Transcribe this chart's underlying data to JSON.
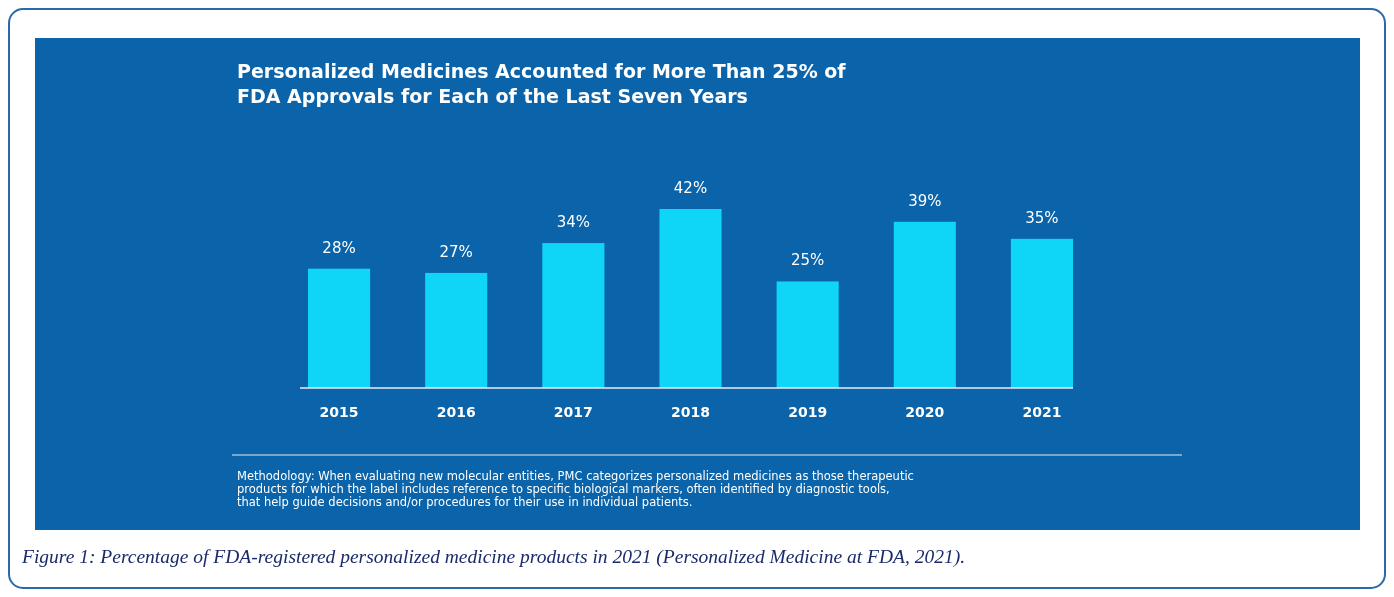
{
  "chart_data": {
    "type": "bar",
    "title": "Personalized Medicines Accounted for More Than 25% of FDA Approvals for Each of the Last Seven Years",
    "categories": [
      "2015",
      "2016",
      "2017",
      "2018",
      "2019",
      "2020",
      "2021"
    ],
    "values": [
      28,
      27,
      34,
      42,
      25,
      39,
      35
    ],
    "value_labels": [
      "28%",
      "27%",
      "34%",
      "42%",
      "25%",
      "39%",
      "35%"
    ],
    "color": "#0fd6f7",
    "annotations": [
      "Methodology: When evaluating new molecular entities, PMC categorizes personalized medicines as those therapeutic products for which the label includes reference to specific biological markers, often identified by diagnostic tools, that help guide decisions and/or procedures for their use in individual patients.",
      "Figure 1: Percentage of FDA-registered personalized medicine products in 2021 (Personalized Medicine at FDA, 2021)."
    ]
  }
}
